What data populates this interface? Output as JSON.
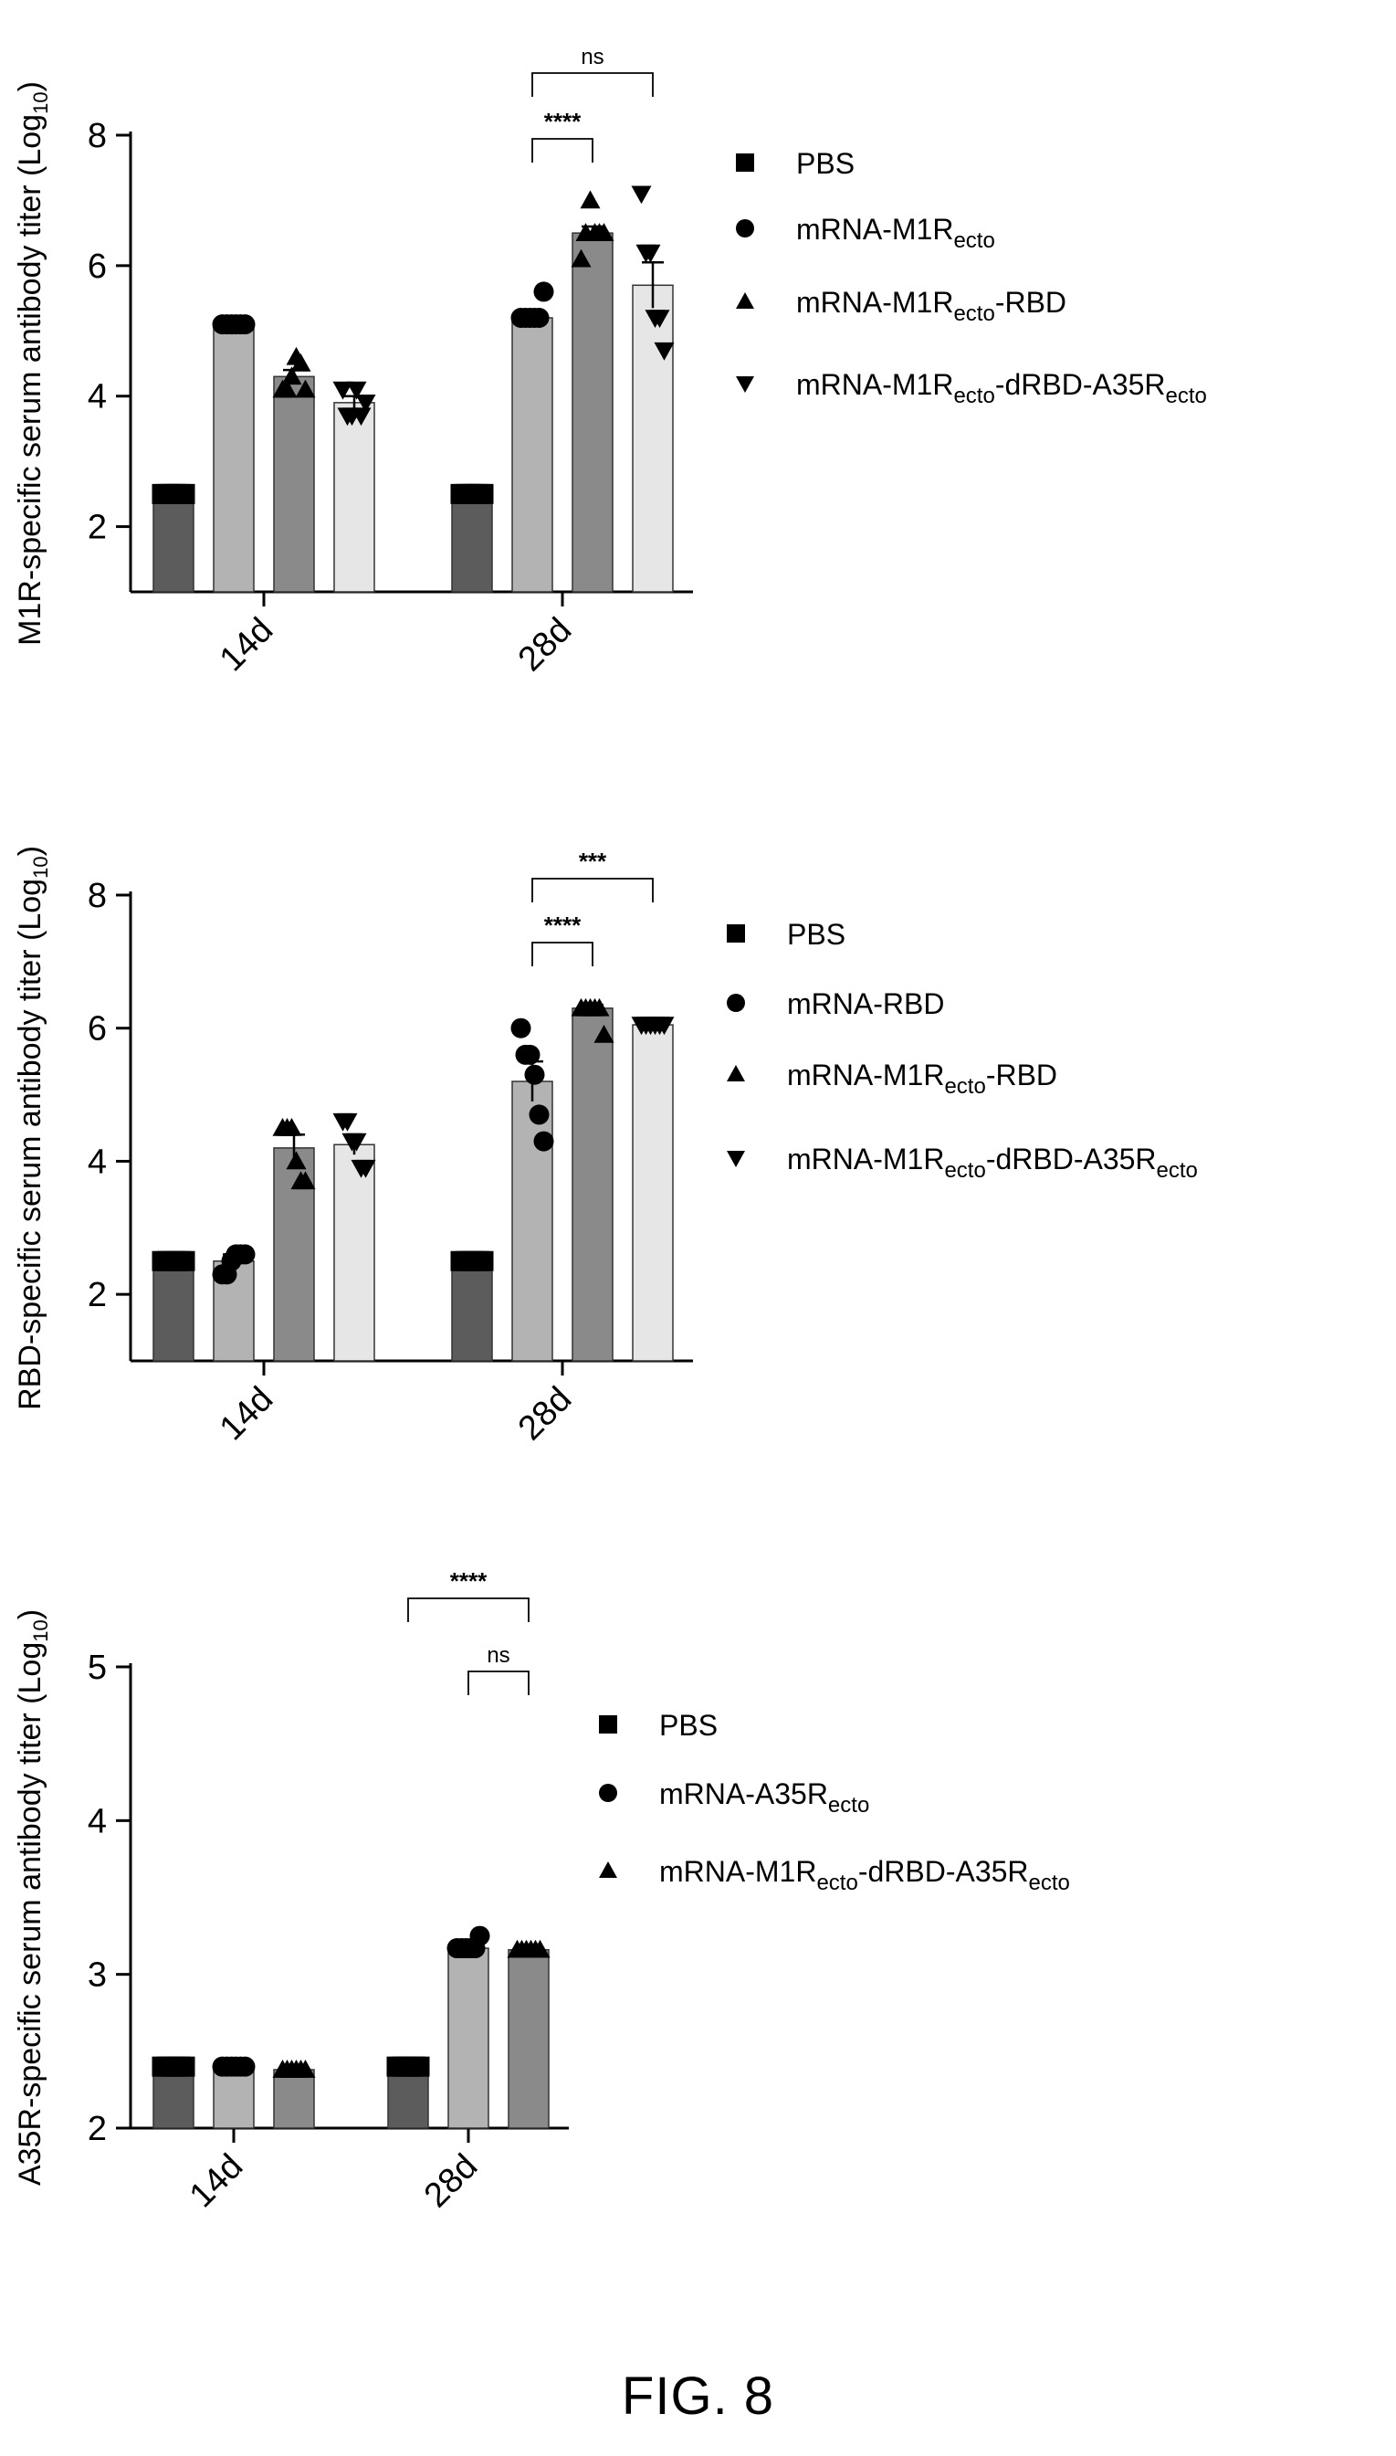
{
  "figure_caption": "FIG. 8",
  "chart_data": [
    {
      "type": "bar",
      "ylabel": "M1R-specific serum antibody titer (Log",
      "ylabel_sub": "10",
      "ylabel_end": ")",
      "ylim": [
        1,
        8
      ],
      "yticks": [
        2,
        4,
        6,
        8
      ],
      "categories": [
        "14d",
        "28d"
      ],
      "series": [
        {
          "name": "PBS",
          "values": [
            2.5,
            2.5
          ],
          "errors": [
            0,
            0
          ],
          "color": "#5c5c5c",
          "marker": "square",
          "points": [
            [
              2.5,
              2.5,
              2.5,
              2.5,
              2.5,
              2.5
            ],
            [
              2.5,
              2.5,
              2.5,
              2.5,
              2.5,
              2.5
            ]
          ]
        },
        {
          "name": "mRNA-M1Recto",
          "name_parts": [
            [
              "mRNA-M1R",
              ""
            ],
            [
              "ecto",
              "sub"
            ]
          ],
          "values": [
            5.1,
            5.2
          ],
          "errors": [
            0,
            0.05
          ],
          "color": "#b3b3b3",
          "marker": "circle",
          "points": [
            [
              5.1,
              5.1,
              5.1,
              5.1,
              5.1,
              5.1
            ],
            [
              5.2,
              5.2,
              5.2,
              5.2,
              5.2,
              5.6
            ]
          ]
        },
        {
          "name": "mRNA-M1Recto-RBD",
          "name_parts": [
            [
              "mRNA-M1R",
              ""
            ],
            [
              "ecto",
              "sub"
            ],
            [
              "-RBD",
              ""
            ]
          ],
          "values": [
            4.3,
            6.5
          ],
          "errors": [
            0.1,
            0.1
          ],
          "color": "#8a8a8a",
          "marker": "triangle-up",
          "points": [
            [
              4.1,
              4.1,
              4.3,
              4.6,
              4.5,
              4.1
            ],
            [
              6.1,
              6.5,
              7.0,
              6.5,
              6.5,
              6.5
            ]
          ]
        },
        {
          "name": "mRNA-M1Recto-dRBD-A35Recto",
          "name_parts": [
            [
              "mRNA-M1R",
              ""
            ],
            [
              "ecto",
              "sub"
            ],
            [
              "-dRBD-A35R",
              ""
            ],
            [
              "ecto",
              "sub"
            ]
          ],
          "values": [
            3.9,
            5.7
          ],
          "errors": [
            0.1,
            0.35
          ],
          "color": "#e6e6e6",
          "marker": "triangle-down",
          "points": [
            [
              4.1,
              3.7,
              3.7,
              4.1,
              3.7,
              3.9
            ],
            [
              7.1,
              6.2,
              6.2,
              5.2,
              5.2,
              4.7
            ]
          ]
        }
      ],
      "annotations": [
        {
          "label": "****",
          "from": [
            1,
            1
          ],
          "to": [
            1,
            2
          ]
        },
        {
          "label": "ns",
          "from": [
            1,
            1
          ],
          "to": [
            1,
            3
          ]
        }
      ]
    },
    {
      "type": "bar",
      "ylabel": "RBD-specific serum antibody titer (Log",
      "ylabel_sub": "10",
      "ylabel_end": ")",
      "ylim": [
        1,
        8
      ],
      "yticks": [
        2,
        4,
        6,
        8
      ],
      "categories": [
        "14d",
        "28d"
      ],
      "series": [
        {
          "name": "PBS",
          "values": [
            2.5,
            2.5
          ],
          "errors": [
            0,
            0
          ],
          "color": "#5c5c5c",
          "marker": "square",
          "points": [
            [
              2.5,
              2.5,
              2.5,
              2.5,
              2.5,
              2.5
            ],
            [
              2.5,
              2.5,
              2.5,
              2.5,
              2.5,
              2.5
            ]
          ]
        },
        {
          "name": "mRNA-RBD",
          "name_parts": [
            [
              "mRNA-RBD",
              ""
            ]
          ],
          "values": [
            2.5,
            5.2
          ],
          "errors": [
            0.1,
            0.3
          ],
          "color": "#b3b3b3",
          "marker": "circle",
          "points": [
            [
              2.3,
              2.3,
              2.5,
              2.6,
              2.6,
              2.6
            ],
            [
              6.0,
              5.6,
              5.6,
              5.3,
              4.7,
              4.3
            ]
          ]
        },
        {
          "name": "mRNA-M1Recto-RBD",
          "name_parts": [
            [
              "mRNA-M1R",
              ""
            ],
            [
              "ecto",
              "sub"
            ],
            [
              "-RBD",
              ""
            ]
          ],
          "values": [
            4.2,
            6.3
          ],
          "errors": [
            0.2,
            0.05
          ],
          "color": "#8a8a8a",
          "marker": "triangle-up",
          "points": [
            [
              4.5,
              4.5,
              4.5,
              4.0,
              3.7,
              3.7
            ],
            [
              6.3,
              6.3,
              6.3,
              6.3,
              6.3,
              5.9
            ]
          ]
        },
        {
          "name": "mRNA-M1Recto-dRBD-A35Recto",
          "name_parts": [
            [
              "mRNA-M1R",
              ""
            ],
            [
              "ecto",
              "sub"
            ],
            [
              "-dRBD-A35R",
              ""
            ],
            [
              "ecto",
              "sub"
            ]
          ],
          "values": [
            4.25,
            6.05
          ],
          "errors": [
            0.15,
            0
          ],
          "color": "#e6e6e6",
          "marker": "triangle-down",
          "points": [
            [
              4.6,
              4.6,
              4.3,
              4.3,
              3.9,
              3.9
            ],
            [
              6.05,
              6.05,
              6.05,
              6.05,
              6.05,
              6.05
            ]
          ]
        }
      ],
      "annotations": [
        {
          "label": "****",
          "from": [
            1,
            1
          ],
          "to": [
            1,
            2
          ]
        },
        {
          "label": "***",
          "from": [
            1,
            1
          ],
          "to": [
            1,
            3
          ]
        }
      ]
    },
    {
      "type": "bar",
      "ylabel": "A35R-specific serum antibody titer (Log",
      "ylabel_sub": "10",
      "ylabel_end": ")",
      "ylim": [
        2,
        5
      ],
      "yticks": [
        2,
        3,
        4,
        5
      ],
      "categories": [
        "14d",
        "28d"
      ],
      "series": [
        {
          "name": "PBS",
          "values": [
            2.4,
            2.4
          ],
          "errors": [
            0,
            0
          ],
          "color": "#5c5c5c",
          "marker": "square",
          "points": [
            [
              2.4,
              2.4,
              2.4,
              2.4,
              2.4,
              2.4
            ],
            [
              2.4,
              2.4,
              2.4,
              2.4,
              2.4,
              2.4
            ]
          ]
        },
        {
          "name": "mRNA-A35Recto",
          "name_parts": [
            [
              "mRNA-A35R",
              ""
            ],
            [
              "ecto",
              "sub"
            ]
          ],
          "values": [
            2.4,
            3.17
          ],
          "errors": [
            0,
            0.02
          ],
          "color": "#b3b3b3",
          "marker": "circle",
          "points": [
            [
              2.4,
              2.4,
              2.4,
              2.4,
              2.4,
              2.4
            ],
            [
              3.17,
              3.17,
              3.17,
              3.17,
              3.17,
              3.25
            ]
          ]
        },
        {
          "name": "mRNA-M1Recto-dRBD-A35Recto",
          "name_parts": [
            [
              "mRNA-M1R",
              ""
            ],
            [
              "ecto",
              "sub"
            ],
            [
              "-dRBD-A35R",
              ""
            ],
            [
              "ecto",
              "sub"
            ]
          ],
          "values": [
            2.38,
            3.16
          ],
          "errors": [
            0,
            0
          ],
          "color": "#8a8a8a",
          "marker": "triangle-up",
          "points": [
            [
              2.38,
              2.38,
              2.38,
              2.38,
              2.38,
              2.38
            ],
            [
              3.16,
              3.16,
              3.16,
              3.16,
              3.16,
              3.16
            ]
          ]
        }
      ],
      "annotations": [
        {
          "label": "****",
          "from": [
            1,
            0
          ],
          "to": [
            1,
            2
          ]
        },
        {
          "label": "ns",
          "from": [
            1,
            1
          ],
          "to": [
            1,
            2
          ]
        }
      ]
    }
  ]
}
